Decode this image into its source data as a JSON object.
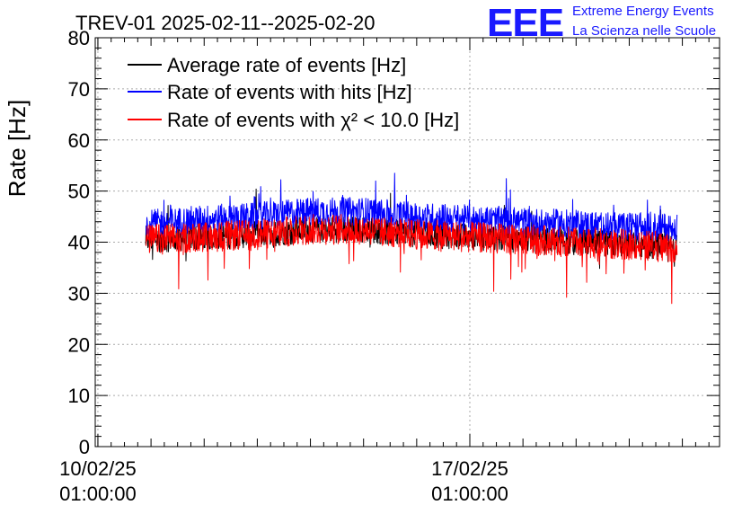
{
  "title": "TREV-01 2025-02-11--2025-02-20",
  "logo": {
    "mark": "EEE",
    "line1": "Extreme Energy Events",
    "line2": "La Scienza nelle Scuole"
  },
  "chart_data": {
    "type": "line",
    "ylabel": "Rate [Hz]",
    "xlabel": "",
    "ylim": [
      0,
      80
    ],
    "yticks": [
      0,
      10,
      20,
      30,
      40,
      50,
      60,
      70,
      80
    ],
    "xticks": [
      {
        "line1": "10/02/25",
        "line2": "01:00:00",
        "day": 0
      },
      {
        "line1": "17/02/25",
        "line2": "01:00:00",
        "day": 7
      }
    ],
    "xlim_days": [
      -0.05,
      11.7
    ],
    "grid": true,
    "legend_position": "top-left",
    "series": [
      {
        "name": "Average rate of events [Hz]",
        "color": "#000000",
        "x_days": [
          0.9,
          2.0,
          3.0,
          4.0,
          5.0,
          6.0,
          7.0,
          8.0,
          9.0,
          10.0,
          10.9
        ],
        "y": [
          40.5,
          41,
          41.5,
          42.5,
          42.5,
          41.5,
          41,
          40.5,
          40,
          39.5,
          39
        ]
      },
      {
        "name": "Rate of events with hits [Hz]",
        "color": "#0000ff",
        "x_days": [
          0.9,
          2.0,
          3.0,
          4.0,
          5.0,
          6.0,
          7.0,
          8.0,
          9.0,
          10.0,
          10.9
        ],
        "y": [
          43.5,
          44.5,
          45,
          46,
          46,
          45,
          44.5,
          44,
          43.5,
          43,
          43
        ]
      },
      {
        "name": "Rate of events with χ² < 10.0 [Hz]",
        "color": "#ff0000",
        "x_days": [
          0.9,
          2.0,
          3.0,
          4.0,
          5.0,
          6.0,
          7.0,
          8.0,
          9.0,
          10.0,
          10.9
        ],
        "y": [
          40.5,
          41,
          41.5,
          42.5,
          42.5,
          41.5,
          41,
          40.5,
          40,
          39.5,
          39
        ]
      }
    ]
  }
}
